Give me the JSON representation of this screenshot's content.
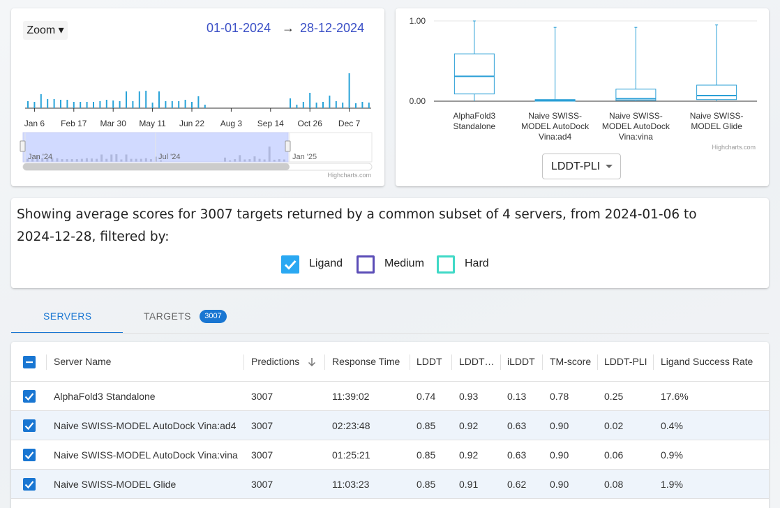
{
  "range_selector": {
    "zoom": "Zoom ▾",
    "from": "01-01-2024",
    "arrow": "→",
    "to": "28-12-2024"
  },
  "navigator": {
    "labels": [
      "Jan '24",
      "Jul '24",
      "Jan '25"
    ]
  },
  "credits": [
    "Highcharts.com",
    "Highcharts.com"
  ],
  "chart_data": [
    {
      "type": "bar",
      "color": "#29a3d8",
      "categories": [
        null,
        "Jan 6",
        null,
        null,
        null,
        null,
        null,
        "Feb 17",
        null,
        null,
        null,
        null,
        null,
        "Mar 30",
        null,
        null,
        null,
        null,
        null,
        "May 11",
        null,
        null,
        null,
        null,
        null,
        "Jun 22",
        null,
        null,
        null,
        null,
        null,
        "Aug 3",
        null,
        null,
        null,
        null,
        null,
        "Sep 14",
        null,
        null,
        null,
        null,
        null,
        "Oct 26",
        null,
        null,
        null,
        null,
        null,
        "Dec 7",
        null,
        null,
        null
      ],
      "values": [
        10,
        9,
        20,
        13,
        13,
        12,
        12,
        9,
        9,
        9,
        9,
        10,
        12,
        11,
        10,
        24,
        10,
        24,
        25,
        8,
        24,
        10,
        10,
        10,
        12,
        9,
        17,
        5,
        0,
        0,
        0,
        0,
        0,
        0,
        0,
        0,
        0,
        0,
        0,
        0,
        14,
        5,
        9,
        22,
        8,
        9,
        18,
        10,
        8,
        50,
        7,
        9,
        8
      ]
    },
    {
      "type": "boxplot",
      "color": "#2a9fd6",
      "categories": [
        "AlphaFold3 Standalone",
        "Naive SWISS-MODEL AutoDock Vina:ad4",
        "Naive SWISS-MODEL AutoDock Vina:vina",
        "Naive SWISS-MODEL Glide"
      ],
      "low": [
        0,
        0,
        0,
        0
      ],
      "q1": [
        0.09,
        0.0,
        0.01,
        0.02
      ],
      "median": [
        0.31,
        0.01,
        0.03,
        0.07
      ],
      "q3": [
        0.59,
        0.02,
        0.15,
        0.2
      ],
      "high": [
        1.0,
        0.92,
        0.92,
        0.95
      ],
      "ylim": [
        0,
        1
      ],
      "yticks": [
        {
          "value": 0,
          "label": "0.00"
        },
        {
          "value": 1,
          "label": "1.00"
        }
      ],
      "grid": true
    }
  ],
  "metric_select": "LDDT-PLI",
  "summary": {
    "text": "Showing average scores for 3007 targets returned by a common subset of 4 servers, from 2024-01-06 to 2024-12-28, filtered by:",
    "filters": [
      {
        "label": "Ligand",
        "checked": true,
        "color": "#2aa8f2"
      },
      {
        "label": "Medium",
        "checked": false,
        "color": "#5b4db7"
      },
      {
        "label": "Hard",
        "checked": false,
        "color": "#3fd9c6"
      }
    ]
  },
  "tabs": [
    {
      "label": "SERVERS",
      "active": true
    },
    {
      "label": "TARGETS",
      "active": false,
      "badge": "3007"
    }
  ],
  "table": {
    "columns": [
      "Server Name",
      "Predictions",
      "Response Time",
      "LDDT",
      "LDDT…",
      "iLDDT",
      "TM-score",
      "LDDT-PLI",
      "Ligand Success Rate"
    ],
    "rows": [
      [
        "AlphaFold3 Standalone",
        "3007",
        "11:39:02",
        "0.74",
        "0.93",
        "0.13",
        "0.78",
        "0.25",
        "17.6%"
      ],
      [
        "Naive SWISS-MODEL AutoDock Vina:ad4",
        "3007",
        "02:23:48",
        "0.85",
        "0.92",
        "0.63",
        "0.90",
        "0.02",
        "0.4%"
      ],
      [
        "Naive SWISS-MODEL AutoDock Vina:vina",
        "3007",
        "01:25:21",
        "0.85",
        "0.92",
        "0.63",
        "0.90",
        "0.06",
        "0.9%"
      ],
      [
        "Naive SWISS-MODEL Glide",
        "3007",
        "11:03:23",
        "0.85",
        "0.91",
        "0.62",
        "0.90",
        "0.08",
        "1.9%"
      ]
    ]
  }
}
